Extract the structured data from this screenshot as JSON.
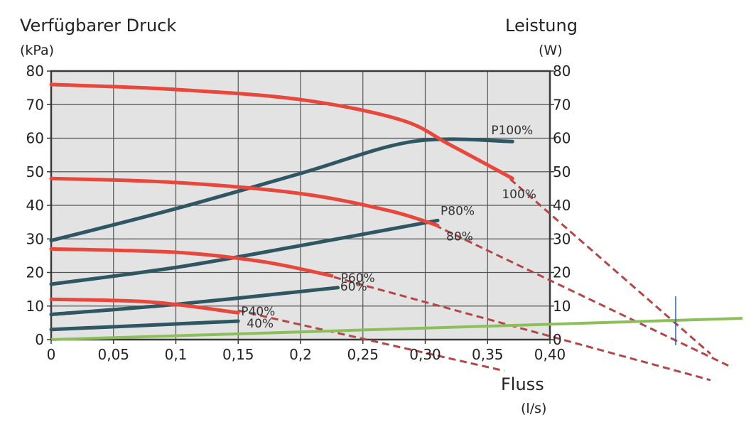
{
  "chart_data": {
    "type": "line",
    "title": "",
    "ylabel": "Verfügbarer Druck",
    "ylabel_unit": "(kPa)",
    "y2label": "Leistung",
    "y2label_unit": "(W)",
    "xlabel": "Fluss",
    "xlabel_unit": "(l/s)",
    "xlim": [
      0,
      0.4
    ],
    "ylim": [
      0,
      80
    ],
    "y2lim": [
      0,
      80
    ],
    "grid": true,
    "x_ticks": [
      "0",
      "0,05",
      "0,1",
      "0,15",
      "0,2",
      "0,25",
      "0,30",
      "0,35",
      "0,40"
    ],
    "y_ticks": [
      "0",
      "10",
      "20",
      "30",
      "40",
      "50",
      "60",
      "70",
      "80"
    ],
    "y2_ticks": [
      "0",
      "10",
      "20",
      "30",
      "40",
      "50",
      "60",
      "70",
      "80"
    ],
    "colors": {
      "pressure": "#e8473c",
      "power": "#2f5663",
      "system": "#8cbf5a",
      "dashed": "#b34747",
      "plot_bg": "#e3e3e3"
    },
    "pressure_series": [
      {
        "name": "100%",
        "points": [
          [
            0,
            76
          ],
          [
            0.1,
            74.5
          ],
          [
            0.2,
            71.5
          ],
          [
            0.28,
            65.5
          ],
          [
            0.32,
            58
          ],
          [
            0.37,
            48
          ]
        ]
      },
      {
        "name": "80%",
        "points": [
          [
            0,
            48
          ],
          [
            0.1,
            46.8
          ],
          [
            0.2,
            43.5
          ],
          [
            0.27,
            38.5
          ],
          [
            0.31,
            34
          ]
        ]
      },
      {
        "name": "60%",
        "points": [
          [
            0,
            27
          ],
          [
            0.1,
            26
          ],
          [
            0.17,
            23.2
          ],
          [
            0.225,
            19
          ]
        ]
      },
      {
        "name": "40%",
        "points": [
          [
            0,
            12
          ],
          [
            0.08,
            11.2
          ],
          [
            0.15,
            8
          ]
        ]
      }
    ],
    "power_series": [
      {
        "name": "P100%",
        "points": [
          [
            0,
            29.5
          ],
          [
            0.1,
            39
          ],
          [
            0.2,
            49.5
          ],
          [
            0.29,
            59
          ],
          [
            0.37,
            59
          ]
        ]
      },
      {
        "name": "P80%",
        "points": [
          [
            0,
            16.5
          ],
          [
            0.1,
            21.5
          ],
          [
            0.2,
            28
          ],
          [
            0.31,
            35.5
          ]
        ]
      },
      {
        "name": "P60%",
        "points": [
          [
            0,
            7.5
          ],
          [
            0.1,
            10.5
          ],
          [
            0.23,
            15.5
          ]
        ]
      },
      {
        "name": "P40%",
        "points": [
          [
            0,
            3
          ],
          [
            0.15,
            5.5
          ]
        ]
      }
    ]
  }
}
